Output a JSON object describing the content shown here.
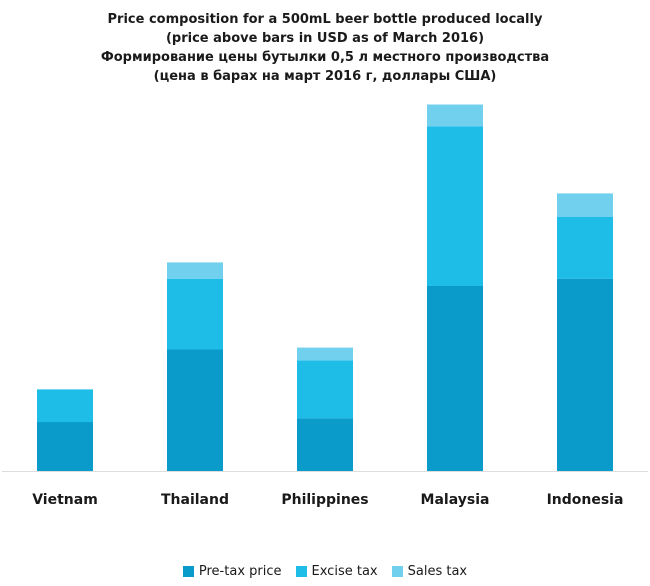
{
  "chart_data": {
    "type": "bar",
    "stacked": true,
    "title_lines": [
      "Price composition for a 500mL beer bottle produced locally",
      "(price above bars in USD as of March 2016)",
      "Формирование цены бутылки 0,5 л местного производства",
      "(цена в барах на март 2016 г, доллары США)"
    ],
    "categories": [
      "Vietnam",
      "Thailand",
      "Philippines",
      "Malaysia",
      "Indonesia"
    ],
    "series": [
      {
        "name": "Pre-tax price",
        "color": "#0a9bcb",
        "values": [
          0.27,
          0.67,
          0.29,
          1.02,
          1.06
        ]
      },
      {
        "name": "Excise tax",
        "color": "#1dbde8",
        "values": [
          0.18,
          0.39,
          0.32,
          0.88,
          0.34
        ]
      },
      {
        "name": "Sales tax",
        "color": "#72d0ef",
        "values": [
          0.0,
          0.09,
          0.07,
          0.12,
          0.13
        ]
      }
    ],
    "ylim": [
      0,
      2.1
    ],
    "grid": false,
    "legend_position": "bottom"
  }
}
